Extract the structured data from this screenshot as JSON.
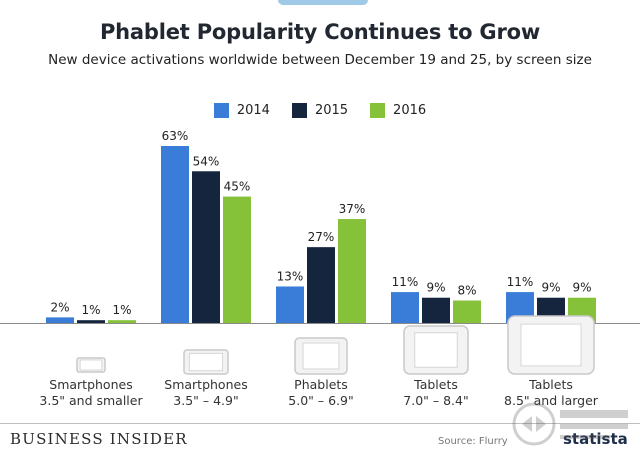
{
  "header": {
    "title": "Phablet Popularity Continues to Grow",
    "subtitle": "New device activations worldwide between December 19 and 25, by screen size"
  },
  "footer": {
    "brand": "BUSINESS INSIDER",
    "source": "Source: Flurry",
    "statista": "statista"
  },
  "colors": {
    "2014": "#3a7dd8",
    "2015": "#14253d",
    "2016": "#86c13a"
  },
  "chart_data": {
    "type": "bar",
    "title": "Phablet Popularity Continues to Grow",
    "subtitle": "New device activations worldwide between December 19 and 25, by screen size",
    "categories": [
      {
        "name": "Smartphones",
        "range": "3.5\" and smaller",
        "icon": "small-smartphone-icon"
      },
      {
        "name": "Smartphones",
        "range": "3.5\" – 4.9\"",
        "icon": "smartphone-icon"
      },
      {
        "name": "Phablets",
        "range": "5.0\" – 6.9\"",
        "icon": "phablet-icon"
      },
      {
        "name": "Tablets",
        "range": "7.0\" – 8.4\"",
        "icon": "small-tablet-icon"
      },
      {
        "name": "Tablets",
        "range": "8.5\" and larger",
        "icon": "large-tablet-icon"
      }
    ],
    "series": [
      {
        "name": "2014",
        "values": [
          2,
          63,
          13,
          11,
          11
        ],
        "labels": [
          "2%",
          "63%",
          "13%",
          "11%",
          "11%"
        ]
      },
      {
        "name": "2015",
        "values": [
          1,
          54,
          27,
          9,
          9
        ],
        "labels": [
          "1%",
          "54%",
          "27%",
          "9%",
          "9%"
        ]
      },
      {
        "name": "2016",
        "values": [
          1,
          45,
          37,
          8,
          9
        ],
        "labels": [
          "1%",
          "45%",
          "37%",
          "8%",
          "9%"
        ]
      }
    ],
    "ylim": [
      0,
      63
    ],
    "grid": false,
    "legend": "top-center"
  }
}
